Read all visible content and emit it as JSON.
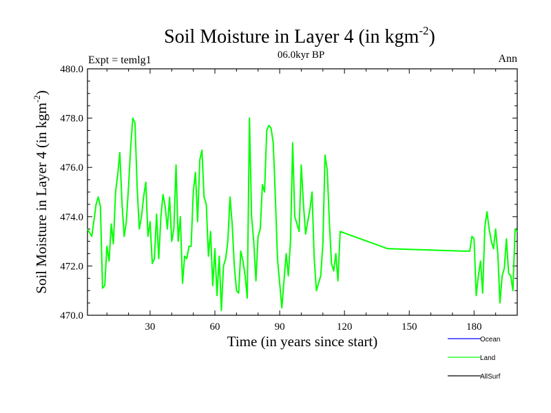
{
  "chart_data": {
    "type": "line",
    "title": "Soil Moisture in Layer 4 (in kgm",
    "title_exponent": "-2",
    "title_close": ")",
    "subtitle_left": "Expt = temlg1",
    "subtitle_center": "06.0kyr BP",
    "subtitle_right": "Ann",
    "xlabel": "Time (in years since start)",
    "ylabel": "Soil Moisture in Layer 4 (in kgm",
    "ylabel_exponent": "-2",
    "ylabel_close": ")",
    "xlim": [
      1,
      200
    ],
    "ylim": [
      470.0,
      480.0
    ],
    "xticks": [
      30,
      60,
      90,
      120,
      150,
      180
    ],
    "xtick_labels": [
      "30",
      "60",
      "90",
      "120",
      "150",
      "180"
    ],
    "yticks": [
      470,
      472,
      474,
      476,
      478,
      480
    ],
    "ytick_labels": [
      "470.0",
      "472.0",
      "474.0",
      "476.0",
      "478.0",
      "480.0"
    ],
    "legend_position": "bottom-right",
    "series": [
      {
        "name": "Ocean",
        "color": "#0000ff",
        "x": [],
        "values": []
      },
      {
        "name": "Land",
        "color": "#00ff00",
        "x": [
          1,
          3,
          5,
          6,
          7,
          8,
          9,
          10,
          11,
          12,
          13,
          14,
          15,
          16,
          17,
          18,
          19,
          20,
          21,
          22,
          23,
          24,
          25,
          26,
          27,
          28,
          29,
          30,
          31,
          32,
          33,
          34,
          35,
          36,
          37,
          38,
          39,
          40,
          41,
          42,
          43,
          44,
          45,
          46,
          47,
          48,
          49,
          50,
          51,
          52,
          53,
          54,
          55,
          56,
          57,
          58,
          59,
          60,
          61,
          62,
          63,
          64,
          65,
          66,
          67,
          68,
          69,
          70,
          71,
          72,
          73,
          74,
          75,
          76,
          77,
          78,
          79,
          80,
          81,
          82,
          83,
          84,
          85,
          86,
          87,
          88,
          89,
          90,
          91,
          92,
          93,
          94,
          95,
          96,
          97,
          98,
          99,
          100,
          101,
          102,
          103,
          104,
          105,
          106,
          107,
          108,
          109,
          110,
          111,
          112,
          113,
          114,
          115,
          116,
          117,
          118,
          140,
          176,
          177,
          178,
          179,
          180,
          181,
          182,
          183,
          184,
          185,
          186,
          187,
          188,
          189,
          190,
          191,
          192,
          193,
          194,
          195,
          196,
          197,
          198,
          199,
          200
        ],
        "values": [
          473.5,
          473.2,
          474.5,
          474.8,
          474.4,
          471.1,
          471.2,
          472.8,
          472.2,
          473.7,
          472.9,
          475.0,
          475.7,
          476.6,
          474.5,
          473.2,
          473.8,
          475.2,
          476.8,
          478.0,
          477.8,
          475.2,
          473.5,
          474.0,
          474.8,
          475.4,
          473.2,
          473.8,
          472.1,
          472.3,
          474.1,
          472.3,
          474.0,
          474.9,
          474.4,
          473.5,
          474.8,
          473.0,
          473.5,
          476.1,
          473.0,
          474.0,
          471.3,
          472.4,
          472.3,
          472.8,
          472.8,
          475.0,
          475.8,
          473.8,
          476.3,
          476.7,
          474.8,
          474.5,
          472.4,
          473.4,
          471.2,
          472.7,
          470.8,
          472.4,
          470.2,
          472.0,
          472.3,
          473.0,
          474.8,
          473.7,
          472.0,
          471.0,
          470.9,
          472.6,
          472.2,
          471.6,
          470.7,
          478.0,
          474.0,
          473.0,
          471.4,
          473.2,
          473.5,
          475.3,
          475.0,
          477.5,
          477.7,
          477.6,
          477.0,
          474.8,
          472.3,
          471.3,
          470.3,
          471.4,
          472.5,
          471.6,
          473.0,
          477.0,
          474.0,
          473.7,
          473.4,
          476.1,
          474.5,
          473.3,
          473.8,
          474.3,
          475.0,
          472.3,
          471.0,
          471.3,
          471.6,
          472.9,
          476.5,
          475.9,
          473.8,
          472.1,
          471.8,
          472.5,
          471.4,
          473.4,
          472.7,
          472.6,
          472.6,
          472.6,
          473.2,
          473.1,
          470.8,
          471.6,
          472.2,
          470.9,
          473.6,
          474.2,
          473.5,
          473.0,
          472.7,
          473.5,
          472.5,
          470.5,
          471.6,
          471.9,
          473.1,
          471.7,
          471.6,
          471.0,
          473.5,
          473.4
        ]
      },
      {
        "name": "AllSurf",
        "color": "#000000",
        "x": [],
        "values": []
      }
    ]
  }
}
